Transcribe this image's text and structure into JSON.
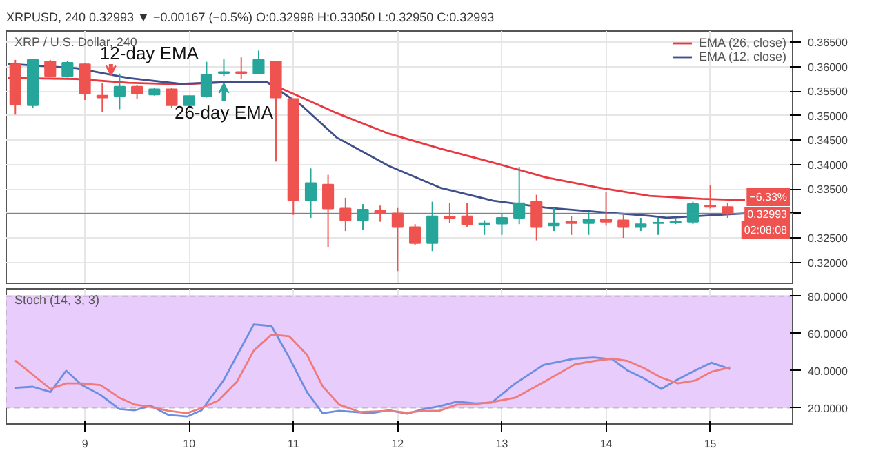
{
  "chart_data": [
    {
      "type": "candlestick",
      "title": "XRPUSD, 240 0.32993 ▼ −0.00167 (−0.5%) O:0.32998 H:0.33050 L:0.32950 C:0.32993",
      "subtitle": "XRP / U.S. Dollar, 240",
      "x": [
        8.333,
        8.5,
        8.667,
        8.833,
        9,
        9.167,
        9.333,
        9.5,
        9.667,
        9.833,
        10,
        10.167,
        10.333,
        10.5,
        10.667,
        10.833,
        11,
        11.167,
        11.333,
        11.5,
        11.667,
        11.833,
        12,
        12.167,
        12.333,
        12.5,
        12.667,
        12.833,
        13,
        13.167,
        13.333,
        13.5,
        13.667,
        13.833,
        14,
        14.167,
        14.333,
        14.5,
        14.667,
        14.833,
        15,
        15.167
      ],
      "ohlc": [
        [
          0.3605,
          0.3614,
          0.3502,
          0.3523
        ],
        [
          0.3521,
          0.3614,
          0.3515,
          0.3614
        ],
        [
          0.3611,
          0.3614,
          0.3578,
          0.3581
        ],
        [
          0.3581,
          0.3611,
          0.3578,
          0.3608
        ],
        [
          0.3605,
          0.3608,
          0.3532,
          0.3545
        ],
        [
          0.3541,
          0.3567,
          0.3507,
          0.3537
        ],
        [
          0.354,
          0.3586,
          0.3513,
          0.3559
        ],
        [
          0.3559,
          0.3562,
          0.3534,
          0.3545
        ],
        [
          0.3543,
          0.3556,
          0.3541,
          0.3554
        ],
        [
          0.3554,
          0.3556,
          0.3515,
          0.3521
        ],
        [
          0.3521,
          0.354,
          0.3518,
          0.354
        ],
        [
          0.354,
          0.361,
          0.3537,
          0.3584
        ],
        [
          0.3587,
          0.3616,
          0.3581,
          0.3589
        ],
        [
          0.3589,
          0.3619,
          0.3575,
          0.3587
        ],
        [
          0.3586,
          0.3633,
          0.3586,
          0.3614
        ],
        [
          0.3611,
          0.3611,
          0.3406,
          0.3537
        ],
        [
          0.3534,
          0.3534,
          0.3297,
          0.3327
        ],
        [
          0.3327,
          0.3392,
          0.3291,
          0.3362
        ],
        [
          0.3359,
          0.3379,
          0.3231,
          0.331
        ],
        [
          0.331,
          0.3332,
          0.3264,
          0.3286
        ],
        [
          0.3286,
          0.3319,
          0.3267,
          0.3308
        ],
        [
          0.3305,
          0.3316,
          0.3283,
          0.33
        ],
        [
          0.33,
          0.3311,
          0.3182,
          0.3272
        ],
        [
          0.3272,
          0.3278,
          0.3236,
          0.3239
        ],
        [
          0.3239,
          0.3324,
          0.3223,
          0.3294
        ],
        [
          0.3293,
          0.3322,
          0.328,
          0.3291
        ],
        [
          0.3294,
          0.3321,
          0.3272,
          0.3278
        ],
        [
          0.3278,
          0.3286,
          0.3256,
          0.328
        ],
        [
          0.3279,
          0.3299,
          0.3256,
          0.3291
        ],
        [
          0.3291,
          0.3395,
          0.3278,
          0.3321
        ],
        [
          0.3324,
          0.3338,
          0.3245,
          0.3272
        ],
        [
          0.3275,
          0.3311,
          0.3264,
          0.328
        ],
        [
          0.3283,
          0.3294,
          0.3256,
          0.328
        ],
        [
          0.328,
          0.3302,
          0.3256,
          0.3288
        ],
        [
          0.3288,
          0.3343,
          0.3275,
          0.3283
        ],
        [
          0.3286,
          0.3297,
          0.325,
          0.3272
        ],
        [
          0.3272,
          0.3291,
          0.3264,
          0.3278
        ],
        [
          0.328,
          0.3291,
          0.3256,
          0.3281
        ],
        [
          0.3281,
          0.3291,
          0.3278,
          0.3283
        ],
        [
          0.3283,
          0.3324,
          0.3278,
          0.3319
        ],
        [
          0.3316,
          0.3357,
          0.331,
          0.3313
        ],
        [
          0.3313,
          0.3322,
          0.3291,
          0.3299
        ]
      ],
      "colors": [
        "#ef5350",
        "#26a69a",
        "#ef5350",
        "#26a69a",
        "#ef5350",
        "#ef5350",
        "#26a69a",
        "#ef5350",
        "#26a69a",
        "#ef5350",
        "#26a69a",
        "#26a69a",
        "#26a69a",
        "#ef5350",
        "#26a69a",
        "#ef5350",
        "#ef5350",
        "#26a69a",
        "#ef5350",
        "#ef5350",
        "#26a69a",
        "#ef5350",
        "#ef5350",
        "#ef5350",
        "#26a69a",
        "#ef5350",
        "#ef5350",
        "#26a69a",
        "#26a69a",
        "#26a69a",
        "#ef5350",
        "#26a69a",
        "#ef5350",
        "#26a69a",
        "#ef5350",
        "#ef5350",
        "#26a69a",
        "#26a69a",
        "#26a69a",
        "#26a69a",
        "#ef5350",
        "#ef5350"
      ],
      "series": [
        {
          "name": "EMA (26, close)",
          "type": "line",
          "color": "#e8373f",
          "x": [
            8.26,
            8.917,
            9.417,
            9.917,
            10.417,
            10.75,
            11.083,
            11.417,
            11.917,
            12.417,
            12.917,
            13.417,
            13.917,
            14.417,
            14.917,
            15.333
          ],
          "values": [
            0.3577,
            0.3575,
            0.3567,
            0.3564,
            0.3569,
            0.3568,
            0.3537,
            0.3505,
            0.3463,
            0.3432,
            0.3404,
            0.3374,
            0.3353,
            0.3336,
            0.333,
            0.3327
          ]
        },
        {
          "name": "EMA (12, close)",
          "type": "line",
          "color": "#3f4f8c",
          "x": [
            8.26,
            8.917,
            9.417,
            9.917,
            10.417,
            10.75,
            11.083,
            11.417,
            11.917,
            12.417,
            12.917,
            13.417,
            13.917,
            14.417,
            14.583,
            14.917,
            15.333
          ],
          "values": [
            0.3606,
            0.3597,
            0.3577,
            0.3565,
            0.3569,
            0.3568,
            0.352,
            0.3455,
            0.3397,
            0.3352,
            0.3326,
            0.3312,
            0.3303,
            0.3295,
            0.3291,
            0.3295,
            0.33
          ]
        }
      ],
      "xlim": [
        8.245,
        15.79
      ],
      "xticks": [
        9,
        10,
        11,
        12,
        13,
        14,
        15
      ],
      "ylim": [
        0.3157,
        0.3673
      ],
      "yticks": [
        {
          "value": 0.32,
          "label": "0.32000"
        },
        {
          "value": 0.325,
          "label": "0.32500"
        },
        {
          "value": 0.33,
          "label": null
        },
        {
          "value": 0.335,
          "label": "0.33500"
        },
        {
          "value": 0.34,
          "label": "0.34000"
        },
        {
          "value": 0.345,
          "label": "0.34500"
        },
        {
          "value": 0.35,
          "label": "0.35000"
        },
        {
          "value": 0.355,
          "label": "0.35500"
        },
        {
          "value": 0.36,
          "label": "0.36000"
        },
        {
          "value": 0.365,
          "label": "0.36500"
        }
      ],
      "ref_lines": [
        {
          "axis": "y",
          "value": 0.32993,
          "label": "0.32993",
          "color": "#ef5350",
          "line_style": "solid"
        }
      ],
      "annotations": [
        {
          "text": "12-day EMA",
          "x": 9.25,
          "y": 0.3582
        },
        {
          "text": "26-day EMA",
          "x": 10.333,
          "y": 0.3566
        },
        "−6.33%",
        "02:08:08"
      ],
      "grid": true,
      "legend": "top right",
      "tick_labels": "y"
    },
    {
      "type": "line",
      "subtitle": "Stoch (14, 3, 3)",
      "series": [
        {
          "color": "#6c8ee0",
          "x": [
            8.33,
            8.5,
            8.67,
            8.82,
            8.97,
            9.15,
            9.33,
            9.48,
            9.63,
            9.8,
            9.98,
            10.12,
            10.33,
            10.62,
            10.79,
            10.96,
            11.13,
            11.28,
            11.44,
            11.74,
            11.92,
            12.09,
            12.25,
            12.4,
            12.57,
            12.75,
            12.9,
            13.13,
            13.4,
            13.7,
            13.88,
            14.06,
            14.21,
            14.36,
            14.53,
            14.69,
            14.86,
            15.01,
            15.19
          ],
          "values": [
            30.8,
            31.4,
            28.6,
            40,
            32.3,
            27,
            19.4,
            18.8,
            21.2,
            16.3,
            15.4,
            18.8,
            34.8,
            64.9,
            64,
            47.1,
            28.6,
            17.2,
            18.5,
            17.2,
            18.8,
            16.9,
            19.4,
            20.9,
            23.4,
            22.5,
            22.8,
            33.2,
            43.1,
            46.5,
            47.1,
            46.2,
            40,
            36,
            30.2,
            35.4,
            40.3,
            44.3,
            40.9
          ]
        },
        {
          "color": "#f07a7a",
          "x": [
            8.33,
            8.67,
            8.82,
            8.97,
            9.15,
            9.33,
            9.48,
            9.63,
            9.8,
            9.98,
            10.12,
            10.28,
            10.46,
            10.62,
            10.79,
            10.96,
            11.13,
            11.28,
            11.44,
            11.64,
            11.92,
            12.09,
            12.25,
            12.4,
            12.57,
            12.75,
            12.9,
            13.13,
            13.4,
            13.7,
            13.88,
            14.06,
            14.21,
            14.36,
            14.53,
            14.69,
            14.86,
            15.01,
            15.19
          ],
          "values": [
            45.5,
            30.2,
            33.2,
            33.2,
            32.3,
            25.5,
            21.8,
            20.6,
            18.5,
            17.2,
            20,
            24,
            34.2,
            50.8,
            59.4,
            58.5,
            48.6,
            31.7,
            21.8,
            17.8,
            18.5,
            17.5,
            18.5,
            18.5,
            21.8,
            22.2,
            23.1,
            25.5,
            33.8,
            43.4,
            45.2,
            46.5,
            45.2,
            41.5,
            36.3,
            33.2,
            34.8,
            39.4,
            41.8
          ]
        }
      ],
      "xlim": [
        8.245,
        15.79
      ],
      "xticks": [
        9,
        10,
        11,
        12,
        13,
        14,
        15
      ],
      "ylim": [
        11.4,
        84
      ],
      "yticks": [
        {
          "value": 20,
          "label": "20.0000"
        },
        {
          "value": 40,
          "label": "40.0000"
        },
        {
          "value": 60,
          "label": "60.0000"
        },
        {
          "value": 80,
          "label": "80.0000"
        }
      ],
      "bands": [
        {
          "axis": "y",
          "from": 20,
          "to": 80,
          "color": "#e8cdfc"
        }
      ],
      "grid": true
    }
  ]
}
